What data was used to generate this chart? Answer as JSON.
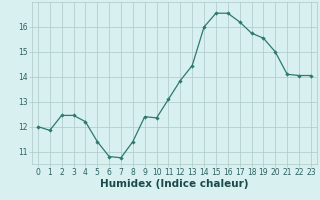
{
  "x": [
    0,
    1,
    2,
    3,
    4,
    5,
    6,
    7,
    8,
    9,
    10,
    11,
    12,
    13,
    14,
    15,
    16,
    17,
    18,
    19,
    20,
    21,
    22,
    23
  ],
  "y": [
    12.0,
    11.85,
    12.45,
    12.45,
    12.2,
    11.4,
    10.8,
    10.75,
    11.4,
    12.4,
    12.35,
    13.1,
    13.85,
    14.45,
    16.0,
    16.55,
    16.55,
    16.2,
    15.75,
    15.55,
    15.0,
    14.1,
    14.05,
    14.05
  ],
  "xlim": [
    -0.5,
    23.5
  ],
  "ylim": [
    10.5,
    17.0
  ],
  "xticks": [
    0,
    1,
    2,
    3,
    4,
    5,
    6,
    7,
    8,
    9,
    10,
    11,
    12,
    13,
    14,
    15,
    16,
    17,
    18,
    19,
    20,
    21,
    22,
    23
  ],
  "yticks": [
    11,
    12,
    13,
    14,
    15,
    16
  ],
  "xlabel": "Humidex (Indice chaleur)",
  "line_color": "#2d7a6e",
  "marker": "D",
  "marker_size": 2.2,
  "bg_color": "#d8f0f0",
  "grid_color": "#adc8c8",
  "tick_color": "#2d6060",
  "label_color": "#1a4a4a",
  "tick_label_fontsize": 5.5,
  "xlabel_fontsize": 7.5
}
